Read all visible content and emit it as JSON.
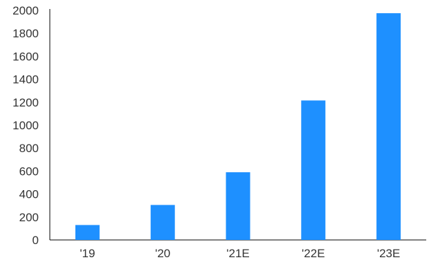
{
  "chart_data": {
    "type": "bar",
    "categories": [
      "'19",
      "'20",
      "'21E",
      "'22E",
      "'23E"
    ],
    "values": [
      130,
      305,
      590,
      1215,
      1975
    ],
    "title": "",
    "xlabel": "",
    "ylabel": "",
    "ylim": [
      0,
      2000
    ],
    "y_ticks": [
      "0",
      "200",
      "400",
      "600",
      "800",
      "1000",
      "1200",
      "1400",
      "1600",
      "1800",
      "2000"
    ],
    "grid": false,
    "legend": "none",
    "bar_color": "#1E90FF",
    "axis_color": "#000000"
  }
}
